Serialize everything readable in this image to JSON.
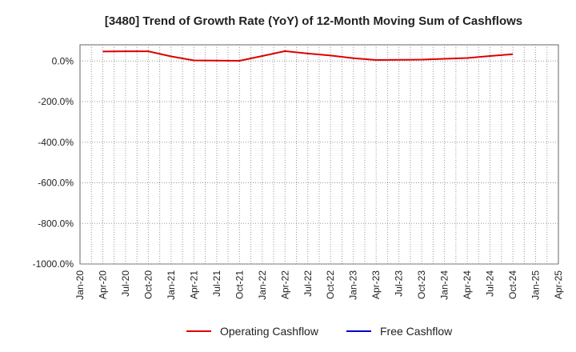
{
  "chart_data": {
    "type": "line",
    "title": "[3480]  Trend of Growth Rate (YoY) of 12-Month Moving Sum of Cashflows",
    "xlabel": "",
    "ylabel": "",
    "x_ticks": [
      "Jan-20",
      "Apr-20",
      "Jul-20",
      "Oct-20",
      "Jan-21",
      "Apr-21",
      "Jul-21",
      "Oct-21",
      "Jan-22",
      "Apr-22",
      "Jul-22",
      "Oct-22",
      "Jan-23",
      "Apr-23",
      "Jul-23",
      "Oct-23",
      "Jan-24",
      "Apr-24",
      "Jul-24",
      "Oct-24",
      "Jan-25",
      "Apr-25"
    ],
    "y_ticks": [
      "0.0%",
      "-200.0%",
      "-400.0%",
      "-600.0%",
      "-800.0%",
      "-1000.0%"
    ],
    "ylim": [
      -1000,
      80
    ],
    "grid": true,
    "legend_position": "bottom",
    "series": [
      {
        "name": "Operating Cashflow",
        "color": "#dd0000",
        "x": [
          "Apr-20",
          "Jul-20",
          "Oct-20",
          "Jan-21",
          "Apr-21",
          "Jul-21",
          "Oct-21",
          "Jan-22",
          "Apr-22",
          "Jul-22",
          "Oct-22",
          "Jan-23",
          "Apr-23",
          "Jul-23",
          "Oct-23",
          "Jan-24",
          "Apr-24",
          "Jul-24",
          "Oct-24"
        ],
        "values": [
          47,
          48,
          48,
          23,
          3,
          2,
          1,
          25,
          49,
          37,
          27,
          14,
          5,
          6,
          7,
          11,
          15,
          25,
          34
        ]
      },
      {
        "name": "Free Cashflow",
        "color": "#0000cc",
        "x": [],
        "values": []
      }
    ]
  }
}
